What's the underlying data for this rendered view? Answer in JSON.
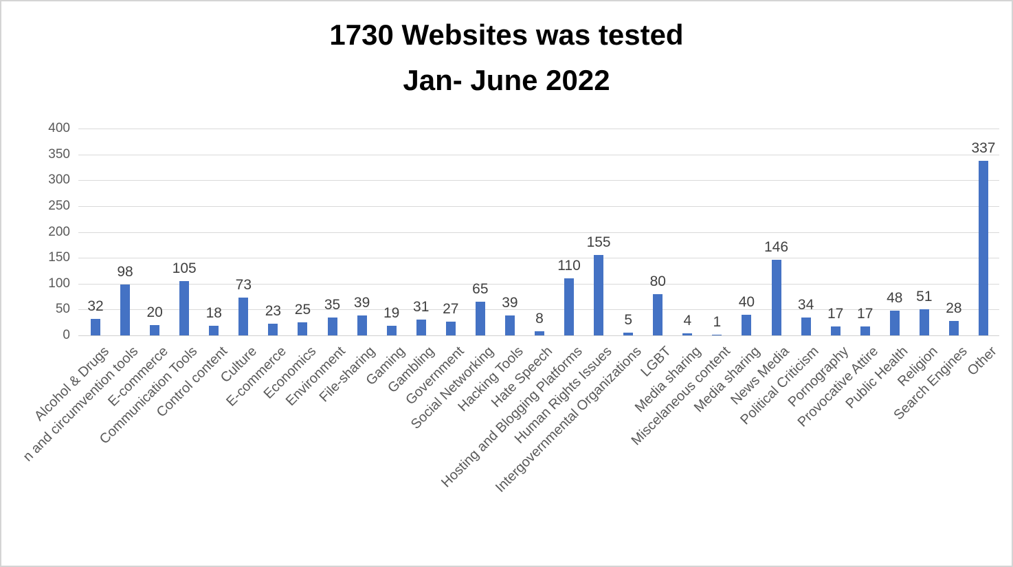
{
  "frame": {
    "border_color": "#d4d4d4",
    "background": "#ffffff"
  },
  "title": {
    "line1": "1730 Websites was tested",
    "line2": "Jan- June 2022"
  },
  "chart_data": {
    "type": "bar",
    "title": "1730 Websites was tested",
    "subtitle": "Jan- June 2022",
    "categories": [
      "Alcohol & Drugs",
      "n and circumvention tools",
      "E-commerce",
      "Communication Tools",
      "Control content",
      "Culture",
      "E-commerce",
      "Economics",
      "Environment",
      "File-sharing",
      "Gaming",
      "Gambling",
      "Government",
      "Social Networking",
      "Hacking Tools",
      "Hate Speech",
      "Hosting and Blogging Platforms",
      "Human Rights Issues",
      "Intergovernmental Organizations",
      "LGBT",
      "Media sharing",
      "Miscelaneous content",
      "Media sharing",
      "News Media",
      "Political Criticism",
      "Pornography",
      "Provocative Attire",
      "Public Health",
      "Religion",
      "Search Engines",
      "Other"
    ],
    "values": [
      32,
      98,
      20,
      105,
      18,
      73,
      23,
      25,
      35,
      39,
      19,
      31,
      27,
      65,
      39,
      8,
      110,
      155,
      5,
      80,
      4,
      1,
      40,
      146,
      34,
      17,
      17,
      48,
      51,
      28,
      337
    ],
    "xlabel": "",
    "ylabel": "",
    "ylim": [
      0,
      400
    ],
    "yticks": [
      0,
      50,
      100,
      150,
      200,
      250,
      300,
      350,
      400
    ],
    "grid": "horizontal",
    "legend": "none",
    "bar_color": "#4472c4",
    "gridline_color": "#d9d9d9",
    "baseline_color": "#cfcfcf",
    "value_label_color": "#404040",
    "axis_tick_color": "#595959"
  }
}
